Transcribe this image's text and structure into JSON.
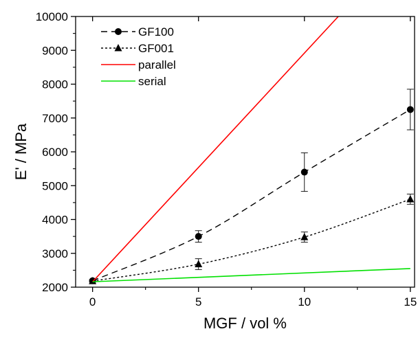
{
  "chart_data": {
    "type": "line",
    "xlabel": "MGF / vol %",
    "ylabel": "E' / MPa",
    "xlim": [
      -0.8,
      15.2
    ],
    "ylim": [
      2000,
      10000
    ],
    "xticks": [
      0,
      5,
      10,
      15
    ],
    "xtick_labels": [
      "0",
      "5",
      "10",
      "15"
    ],
    "yticks": [
      2000,
      3000,
      4000,
      5000,
      6000,
      7000,
      8000,
      9000,
      10000
    ],
    "ytick_labels": [
      "2000",
      "3000",
      "4000",
      "5000",
      "6000",
      "7000",
      "8000",
      "9000",
      "10000"
    ],
    "grid": false,
    "legend_position": "top-left",
    "series": [
      {
        "name": "GF100",
        "style": "dashed",
        "marker": "circle",
        "color": "#000000",
        "x": [
          0,
          5,
          10,
          15
        ],
        "y": [
          2190,
          3500,
          5400,
          7250
        ],
        "error": [
          30,
          170,
          570,
          600
        ]
      },
      {
        "name": "GF001",
        "style": "dotted",
        "marker": "triangle",
        "color": "#000000",
        "x": [
          0,
          5,
          10,
          15
        ],
        "y": [
          2180,
          2680,
          3480,
          4600
        ],
        "error": [
          30,
          160,
          150,
          150
        ]
      },
      {
        "name": "parallel",
        "style": "solid",
        "marker": "none",
        "color": "#ff0000",
        "x": [
          0,
          11.6
        ],
        "y": [
          2160,
          10000
        ]
      },
      {
        "name": "serial",
        "style": "solid",
        "marker": "none",
        "color": "#00e000",
        "x": [
          0,
          15
        ],
        "y": [
          2160,
          2550
        ]
      }
    ]
  }
}
